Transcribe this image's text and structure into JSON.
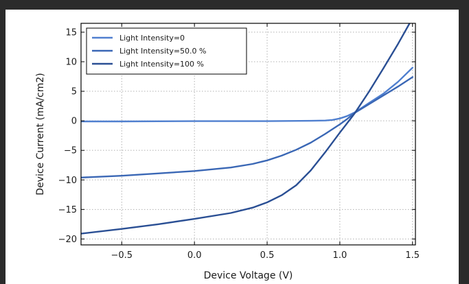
{
  "chart_data": {
    "type": "line",
    "title": "",
    "xlabel": "Device Voltage (V)",
    "ylabel": "Device Current (mA/cm2)",
    "xlim": [
      -0.78,
      1.52
    ],
    "ylim": [
      -21,
      16.5
    ],
    "xticks": [
      -0.5,
      0.0,
      0.5,
      1.0,
      1.5
    ],
    "xtick_labels": [
      "−0.5",
      "0.0",
      "0.5",
      "1.0",
      "1.5"
    ],
    "yticks": [
      -20,
      -15,
      -10,
      -5,
      0,
      5,
      10,
      15
    ],
    "ytick_labels": [
      "−20",
      "−15",
      "−10",
      "−5",
      "0",
      "5",
      "10",
      "15"
    ],
    "grid": true,
    "legend_position": "top-left",
    "series": [
      {
        "name": "Light Intensity=0",
        "color": "#4f7fcf",
        "x": [
          -0.78,
          -0.5,
          0.0,
          0.5,
          0.8,
          0.9,
          0.95,
          1.0,
          1.05,
          1.1,
          1.15,
          1.2,
          1.3,
          1.4,
          1.5
        ],
        "y": [
          -0.1,
          -0.1,
          -0.05,
          -0.05,
          0.0,
          0.05,
          0.15,
          0.4,
          0.8,
          1.4,
          2.2,
          3.0,
          4.6,
          6.6,
          9.0
        ]
      },
      {
        "name": "Light Intensity=50.0 %",
        "color": "#3a67b5",
        "x": [
          -0.78,
          -0.5,
          -0.25,
          0.0,
          0.25,
          0.4,
          0.5,
          0.6,
          0.7,
          0.8,
          0.9,
          1.0,
          1.05,
          1.1,
          1.2,
          1.3,
          1.4,
          1.5
        ],
        "y": [
          -9.6,
          -9.3,
          -8.9,
          -8.5,
          -7.9,
          -7.3,
          -6.7,
          -5.9,
          -4.9,
          -3.7,
          -2.2,
          -0.6,
          0.3,
          1.3,
          2.8,
          4.3,
          5.8,
          7.4
        ]
      },
      {
        "name": "Light Intensity=100 %",
        "color": "#2a4f94",
        "x": [
          -0.78,
          -0.5,
          -0.25,
          0.0,
          0.25,
          0.4,
          0.5,
          0.6,
          0.7,
          0.8,
          0.9,
          1.0,
          1.05,
          1.1,
          1.2,
          1.3,
          1.4,
          1.48
        ],
        "y": [
          -19.1,
          -18.3,
          -17.5,
          -16.6,
          -15.6,
          -14.7,
          -13.8,
          -12.6,
          -10.9,
          -8.4,
          -5.3,
          -2.0,
          -0.4,
          1.2,
          4.9,
          8.9,
          13.0,
          16.5
        ]
      }
    ]
  }
}
